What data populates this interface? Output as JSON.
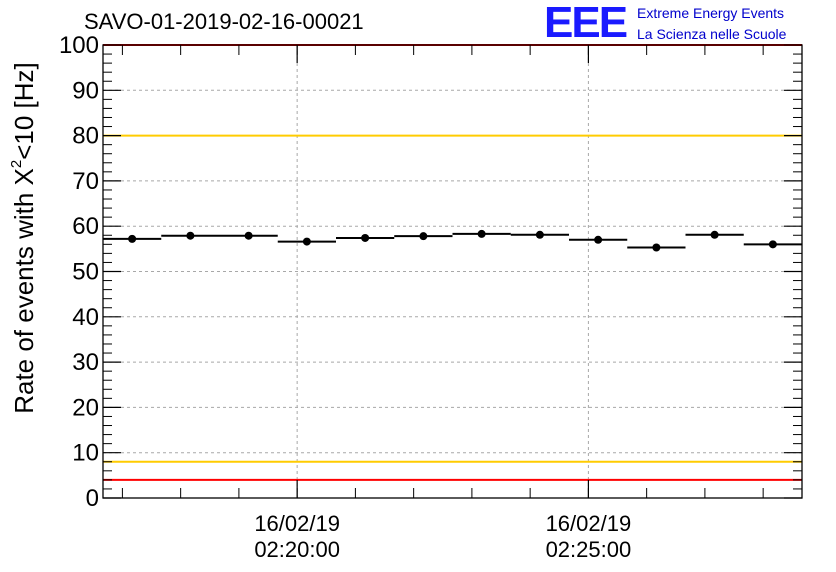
{
  "chart_data": {
    "type": "scatter",
    "title": "SAVO-01-2019-02-16-00021",
    "ylabel_prefix": "Rate of events with X",
    "ylabel_sup": "2",
    "ylabel_suffix": "<10 [Hz]",
    "xlabel": "",
    "ylim": [
      0,
      100
    ],
    "yticks": [
      0,
      10,
      20,
      30,
      40,
      50,
      60,
      70,
      80,
      90,
      100
    ],
    "xlim": [
      0,
      12
    ],
    "xtick_labels": [
      {
        "x": 3.333,
        "date": "16/02/19",
        "time": "02:20:00"
      },
      {
        "x": 8.333,
        "date": "16/02/19",
        "time": "02:25:00"
      }
    ],
    "series": [
      {
        "name": "rate",
        "x": [
          0.5,
          1.5,
          2.5,
          3.5,
          4.5,
          5.5,
          6.5,
          7.5,
          8.5,
          9.5,
          10.5,
          11.5
        ],
        "values": [
          57.2,
          57.9,
          57.9,
          56.6,
          57.4,
          57.8,
          58.3,
          58.1,
          57.0,
          55.3,
          58.1,
          56.0
        ],
        "x_halfwidth": 0.5
      }
    ],
    "reference_lines": [
      {
        "y": 100,
        "color": "#ff0000"
      },
      {
        "y": 80,
        "color": "#ffcc00"
      },
      {
        "y": 8,
        "color": "#ffcc00"
      },
      {
        "y": 4,
        "color": "#ff0000"
      }
    ],
    "grid": true
  },
  "logo": {
    "mark": "EEE",
    "line1": "Extreme Energy Events",
    "line2": "La Scienza nelle Scuole"
  }
}
